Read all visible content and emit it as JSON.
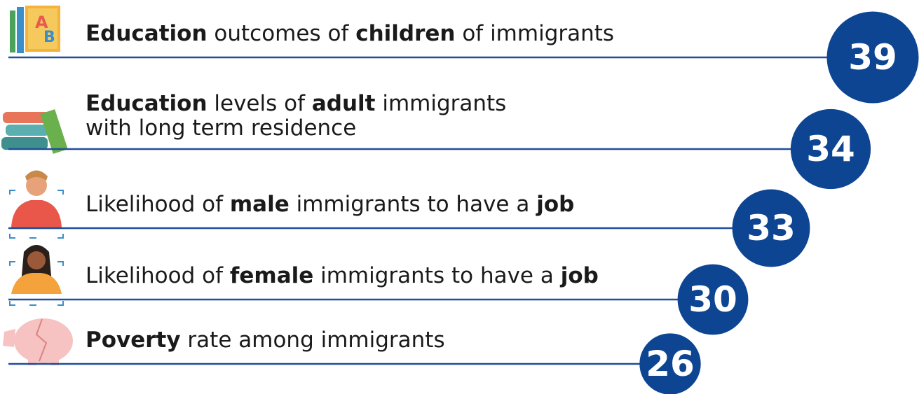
{
  "items": [
    {
      "lines": [
        [
          {
            "text": "Education",
            "bold": true
          },
          {
            "text": " outcomes of "
          },
          {
            "text": "children",
            "bold": true
          },
          {
            "text": " of immigrants"
          }
        ]
      ],
      "value": 39
    },
    {
      "lines": [
        [
          {
            "text": "Education",
            "bold": true
          },
          {
            "text": " levels of "
          },
          {
            "text": "adult",
            "bold": true
          },
          {
            "text": " immigrants"
          }
        ],
        [
          {
            "text": "with long term residence"
          }
        ]
      ],
      "value": 34
    },
    {
      "lines": [
        [
          {
            "text": "Likelihood of "
          },
          {
            "text": "male",
            "bold": true
          },
          {
            "text": " immigrants to have a "
          },
          {
            "text": "job",
            "bold": true
          }
        ]
      ],
      "value": 33
    },
    {
      "lines": [
        [
          {
            "text": "Likelihood of "
          },
          {
            "text": "female",
            "bold": true
          },
          {
            "text": " immigrants to have a "
          },
          {
            "text": "job",
            "bold": true
          }
        ]
      ],
      "value": 30
    },
    {
      "lines": [
        [
          {
            "text": "Poverty",
            "bold": true
          },
          {
            "text": " rate among immigrants"
          }
        ]
      ],
      "value": 26
    }
  ]
}
